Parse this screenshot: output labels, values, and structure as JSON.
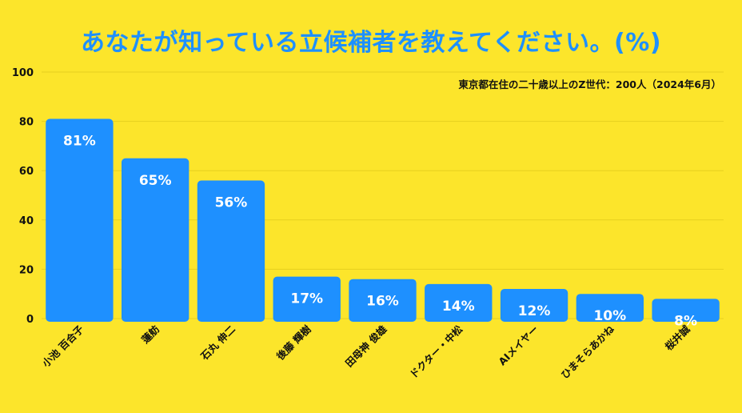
{
  "chart_data": {
    "type": "bar",
    "title": "あなたが知っている立候補者を教えてください。(%)",
    "subtitle": "東京都在住の二十歳以上のZ世代：200人（2024年6月）",
    "categories": [
      "小池 百合子",
      "蓮舫",
      "石丸 伸二",
      "後藤 輝樹",
      "田母神 俊雄",
      "ドクター・中松",
      "AIメイヤー",
      "ひまそらあかね",
      "桜井誠"
    ],
    "values": [
      81,
      65,
      56,
      17,
      16,
      14,
      12,
      10,
      8
    ],
    "value_labels": [
      "81%",
      "65%",
      "56%",
      "17%",
      "16%",
      "14%",
      "12%",
      "10%",
      "8%"
    ],
    "yticks": [
      "0",
      "20",
      "40",
      "60",
      "80",
      "100"
    ],
    "ylim": [
      0,
      100
    ],
    "grid": true,
    "legend": "none",
    "colors": {
      "background": "#FCE52B",
      "bar": "#1E90FF",
      "title": "#1E90FF",
      "bar_label": "#FFFFFF",
      "grid": "#E6CF1F",
      "axis_text": "#111111"
    }
  }
}
